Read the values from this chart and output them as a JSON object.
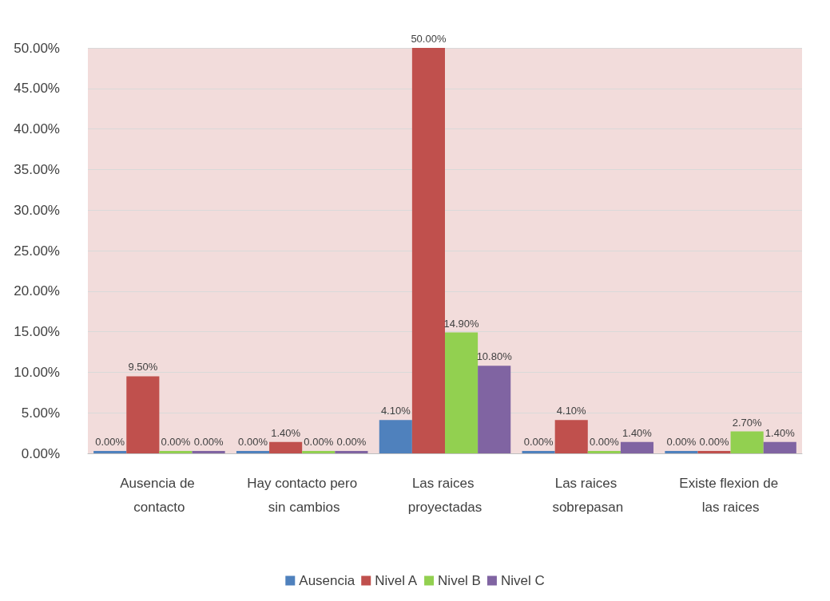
{
  "chart_data": {
    "type": "bar",
    "categories": [
      "Ausencia de contacto",
      "Hay contacto pero sin cambios",
      "Las raices proyectadas",
      "Las raices sobrepasan",
      "Existe flexion de las raices"
    ],
    "series": [
      {
        "name": "Ausencia",
        "color": "#4f81bd",
        "values": [
          0,
          0,
          4.1,
          0,
          0
        ],
        "value_labels": [
          "0.00%",
          "0.00%",
          "4.10%",
          "0.00%",
          "0.00%"
        ]
      },
      {
        "name": "Nivel A",
        "color": "#c0504d",
        "values": [
          9.5,
          1.4,
          50,
          4.1,
          0
        ],
        "value_labels": [
          "9.50%",
          "1.40%",
          "50.00%",
          "4.10%",
          "0.00%"
        ]
      },
      {
        "name": "Nivel B",
        "color": "#92d050",
        "values": [
          0,
          0,
          14.9,
          0,
          2.7
        ],
        "value_labels": [
          "0.00%",
          "0.00%",
          "14.90%",
          "0.00%",
          "2.70%"
        ]
      },
      {
        "name": "Nivel C",
        "color": "#8064a2",
        "values": [
          0,
          0,
          10.8,
          1.4,
          1.4
        ],
        "value_labels": [
          "0.00%",
          "0.00%",
          "10.80%",
          "1.40%",
          "1.40%"
        ]
      }
    ],
    "ylim": [
      0,
      50
    ],
    "yticks": [
      {
        "value": 0,
        "label": "0.00%"
      },
      {
        "value": 5,
        "label": "5.00%"
      },
      {
        "value": 10,
        "label": "10.00%"
      },
      {
        "value": 15,
        "label": "15.00%"
      },
      {
        "value": 20,
        "label": "20.00%"
      },
      {
        "value": 25,
        "label": "25.00%"
      },
      {
        "value": 30,
        "label": "30.00%"
      },
      {
        "value": 35,
        "label": "35.00%"
      },
      {
        "value": 40,
        "label": "40.00%"
      },
      {
        "value": 45,
        "label": "45.00%"
      },
      {
        "value": 50,
        "label": "50.00%"
      }
    ],
    "grid": "y",
    "legend": "bottom"
  }
}
